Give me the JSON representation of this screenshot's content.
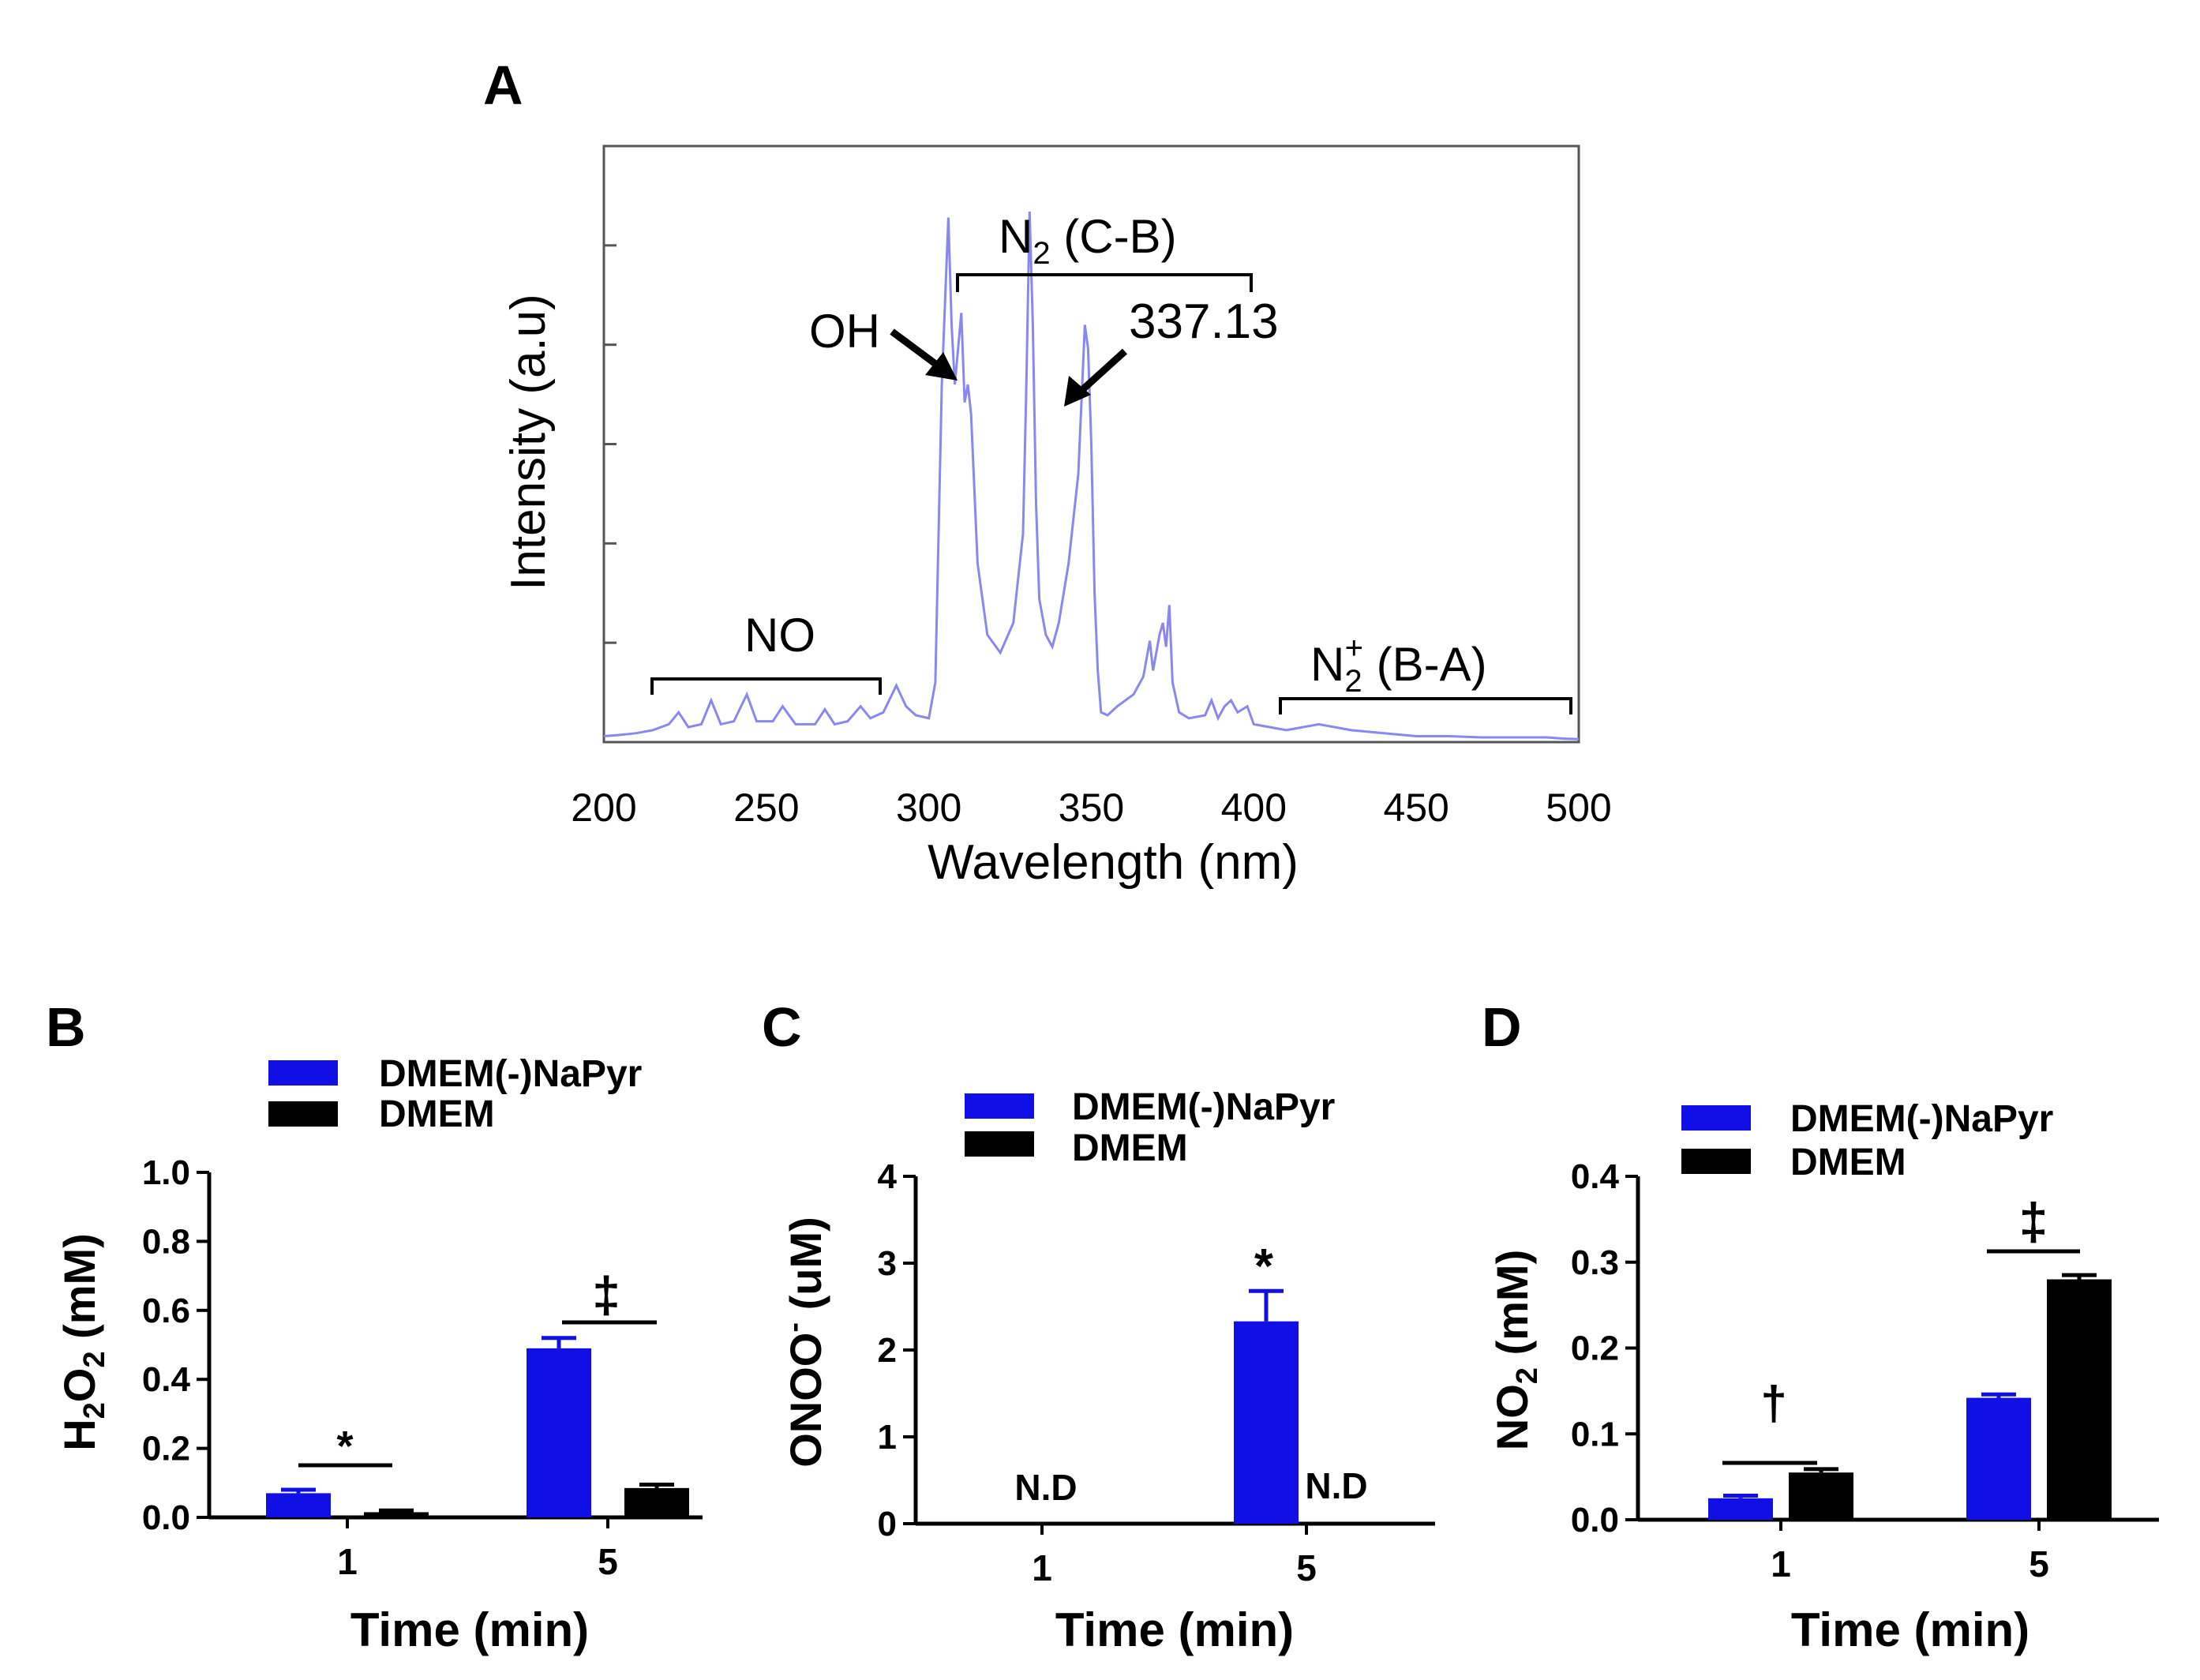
{
  "chart_data": [
    {
      "panel": "A",
      "type": "line",
      "xlabel": "Wavelength (nm)",
      "ylabel": "Intensity (a.u)",
      "xlim": [
        200,
        500
      ],
      "ylim": [
        0,
        1
      ],
      "xticks": [
        "200",
        "250",
        "300",
        "350",
        "400",
        "450",
        "500"
      ],
      "line_color": "#8888ee",
      "series": [
        {
          "name": "emission spectrum",
          "x": [
            200,
            205,
            210,
            215,
            220,
            223,
            226,
            230,
            233,
            236,
            240,
            244,
            247,
            252,
            255,
            259,
            265,
            268,
            271,
            275,
            279,
            282,
            286,
            290,
            293,
            296,
            300,
            302,
            304,
            306,
            307,
            308,
            310,
            311,
            312,
            313,
            315,
            318,
            322,
            326,
            329,
            330,
            331,
            332,
            333,
            334,
            336,
            338,
            340,
            343,
            346,
            348,
            349,
            350,
            351,
            352,
            353,
            355,
            358,
            363,
            366,
            368,
            369,
            370,
            371,
            372,
            373,
            374,
            375,
            377,
            380,
            385,
            387,
            389,
            391,
            393,
            395,
            398,
            400,
            405,
            410,
            420,
            430,
            440,
            450,
            460,
            470,
            480,
            490,
            495,
            500
          ],
          "y": [
            0.01,
            0.012,
            0.015,
            0.02,
            0.03,
            0.05,
            0.025,
            0.03,
            0.07,
            0.03,
            0.035,
            0.08,
            0.035,
            0.035,
            0.06,
            0.03,
            0.03,
            0.055,
            0.03,
            0.035,
            0.06,
            0.04,
            0.05,
            0.095,
            0.06,
            0.045,
            0.04,
            0.1,
            0.6,
            0.88,
            0.7,
            0.6,
            0.72,
            0.57,
            0.6,
            0.55,
            0.3,
            0.18,
            0.15,
            0.2,
            0.35,
            0.6,
            0.89,
            0.7,
            0.4,
            0.24,
            0.18,
            0.16,
            0.2,
            0.3,
            0.45,
            0.7,
            0.66,
            0.5,
            0.25,
            0.12,
            0.05,
            0.045,
            0.06,
            0.08,
            0.11,
            0.17,
            0.12,
            0.15,
            0.18,
            0.2,
            0.16,
            0.23,
            0.1,
            0.05,
            0.04,
            0.045,
            0.07,
            0.04,
            0.06,
            0.07,
            0.05,
            0.06,
            0.03,
            0.025,
            0.02,
            0.03,
            0.02,
            0.015,
            0.01,
            0.01,
            0.008,
            0.008,
            0.008,
            0.006,
            0.005
          ]
        }
      ],
      "annotations": {
        "no": "NO",
        "n2cb_base": "N",
        "n2cb_sub": "2",
        "n2cb_rest": " (C-B)",
        "oh": "OH",
        "peak": "337.13",
        "n2ba_base": "N",
        "n2ba_sub": "2",
        "n2ba_sup": "+",
        "n2ba_rest": " (B-A)"
      }
    },
    {
      "panel": "B",
      "type": "bar",
      "categories": [
        "1",
        "5"
      ],
      "xlabel": "Time (min)",
      "ylabel_parts": [
        "H",
        "2",
        "O",
        "2",
        " (mM)"
      ],
      "ylim": [
        0,
        1.0
      ],
      "yticks": [
        "0.0",
        "0.2",
        "0.4",
        "0.6",
        "0.8",
        "1.0"
      ],
      "series": [
        {
          "name": "DMEM(-)NaPyr",
          "color": "#0f0fe6",
          "values": [
            0.07,
            0.49
          ],
          "errors": [
            0.01,
            0.03
          ]
        },
        {
          "name": "DMEM",
          "color": "#000000",
          "values": [
            0.015,
            0.085
          ],
          "errors": [
            0.005,
            0.01
          ]
        }
      ],
      "significance": [
        "*",
        "‡"
      ]
    },
    {
      "panel": "C",
      "type": "bar",
      "categories": [
        "1",
        "5"
      ],
      "xlabel": "",
      "ylabel_parts": [
        "ONOO",
        "-",
        " (uM)"
      ],
      "ylim": [
        0,
        4
      ],
      "yticks": [
        "0",
        "1",
        "2",
        "3",
        "4"
      ],
      "series": [
        {
          "name": "DMEM(-)NaPyr",
          "color": "#0f0fe6",
          "values": [
            0,
            2.33
          ],
          "errors": [
            0,
            0.35
          ]
        },
        {
          "name": "DMEM",
          "color": "#000000",
          "values": [
            0,
            0
          ],
          "errors": [
            0,
            0
          ]
        }
      ],
      "not_detected": [
        "N.D",
        "N.D"
      ],
      "significance": [
        "*"
      ]
    },
    {
      "panel": "D",
      "type": "bar",
      "categories": [
        "1",
        "5"
      ],
      "xlabel": "Time (min)",
      "ylabel_parts": [
        "NO",
        "2",
        " (mM)"
      ],
      "ylim": [
        0,
        0.4
      ],
      "yticks": [
        "0.0",
        "0.1",
        "0.2",
        "0.3",
        "0.4"
      ],
      "series": [
        {
          "name": "DMEM(-)NaPyr",
          "color": "#0f0fe6",
          "values": [
            0.025,
            0.142
          ],
          "errors": [
            0.003,
            0.004
          ]
        },
        {
          "name": "DMEM",
          "color": "#000000",
          "values": [
            0.055,
            0.28
          ],
          "errors": [
            0.004,
            0.005
          ]
        }
      ],
      "significance": [
        "†",
        "‡"
      ]
    }
  ],
  "panel_labels": {
    "a": "A",
    "b": "B",
    "c": "C",
    "d": "D"
  },
  "legend": {
    "item1": "DMEM(-)NaPyr",
    "item2": "DMEM"
  },
  "colors": {
    "blue": "#0f0fe6",
    "black": "#000000",
    "spectrum": "#8888ee"
  }
}
